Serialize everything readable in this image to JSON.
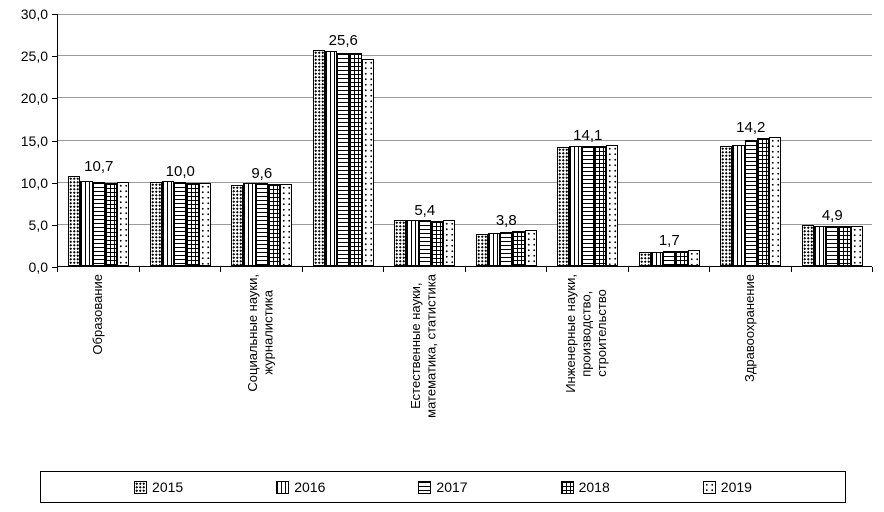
{
  "chart_data": {
    "type": "bar",
    "title": "",
    "ylim": [
      0,
      30
    ],
    "grid": true,
    "legend_position": "bottom",
    "yticks": [
      {
        "value": 0,
        "label": "0,0"
      },
      {
        "value": 5,
        "label": "5,0"
      },
      {
        "value": 10,
        "label": "10,0"
      },
      {
        "value": 15,
        "label": "15,0"
      },
      {
        "value": 20,
        "label": "20,0"
      },
      {
        "value": 25,
        "label": "25,0"
      },
      {
        "value": 30,
        "label": "30,0"
      }
    ],
    "categories": [
      {
        "label": "Образование"
      },
      {
        "label": ""
      },
      {
        "label": "Социальные науки,\nжурналистика"
      },
      {
        "label": ""
      },
      {
        "label": "Естественные науки,\nматематика, статистика"
      },
      {
        "label": ""
      },
      {
        "label": "Инженерные науки,\nпроизводство,\nстроительство"
      },
      {
        "label": ""
      },
      {
        "label": "Здравоохранение"
      },
      {
        "label": ""
      }
    ],
    "series": [
      {
        "name": "2015",
        "pattern": "dense-dots",
        "values": [
          10.7,
          10.0,
          9.6,
          25.6,
          5.4,
          3.8,
          14.1,
          1.7,
          14.2,
          4.9
        ]
      },
      {
        "name": "2016",
        "pattern": "vertical-lines",
        "values": [
          10.1,
          10.1,
          9.9,
          25.5,
          5.4,
          3.9,
          14.2,
          1.7,
          14.4,
          4.7
        ]
      },
      {
        "name": "2017",
        "pattern": "horizontal-lines",
        "values": [
          10.0,
          10.0,
          9.8,
          25.3,
          5.4,
          4.0,
          14.2,
          1.8,
          14.9,
          4.8
        ]
      },
      {
        "name": "2018",
        "pattern": "grid",
        "values": [
          9.9,
          9.9,
          9.7,
          25.2,
          5.3,
          4.2,
          14.2,
          1.8,
          15.2,
          4.8
        ]
      },
      {
        "name": "2019",
        "pattern": "sparse-dots",
        "values": [
          10.0,
          9.8,
          9.7,
          24.6,
          5.4,
          4.3,
          14.4,
          1.9,
          15.3,
          4.8
        ]
      }
    ],
    "data_labels": [
      "10,7",
      "10,0",
      "9,6",
      "25,6",
      "5,4",
      "3,8",
      "14,1",
      "1,7",
      "14,2",
      "4,9"
    ]
  }
}
